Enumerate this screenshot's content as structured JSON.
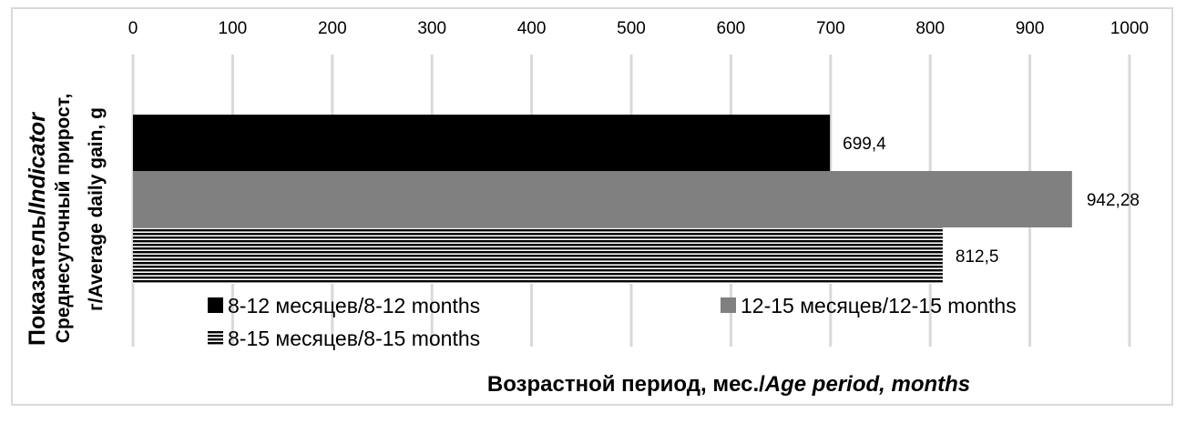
{
  "chart_data": {
    "type": "bar",
    "orientation": "horizontal",
    "categories": [
      ""
    ],
    "series": [
      {
        "name": "8-12 месяцев/8-12 months",
        "values": [
          699.4
        ],
        "label": "699,4",
        "color": "#000000",
        "pattern": "solid"
      },
      {
        "name": "12-15 месяцев/12-15 months",
        "values": [
          942.28
        ],
        "label": "942,28",
        "color": "#808080",
        "pattern": "solid"
      },
      {
        "name": "8-15 месяцев/8-15 months",
        "values": [
          812.5
        ],
        "label": "812,5",
        "color": "#000000",
        "pattern": "horizontal-stripes"
      }
    ],
    "xlim": [
      0,
      1000
    ],
    "xticks": [
      "0",
      "100",
      "200",
      "300",
      "400",
      "500",
      "600",
      "700",
      "800",
      "900",
      "1000"
    ],
    "xaxis_position": "top",
    "grid": true,
    "xlabel": {
      "regular": "Возрастной период, мес./",
      "italic": "Age period, months"
    },
    "ylabel": {
      "line1_regular": "Показатель/",
      "line1_italic": "Indicator",
      "line2": "Среднесуточный прирост,",
      "line3": "г/Average daily gain, g"
    },
    "legend_position": "bottom-inside"
  }
}
